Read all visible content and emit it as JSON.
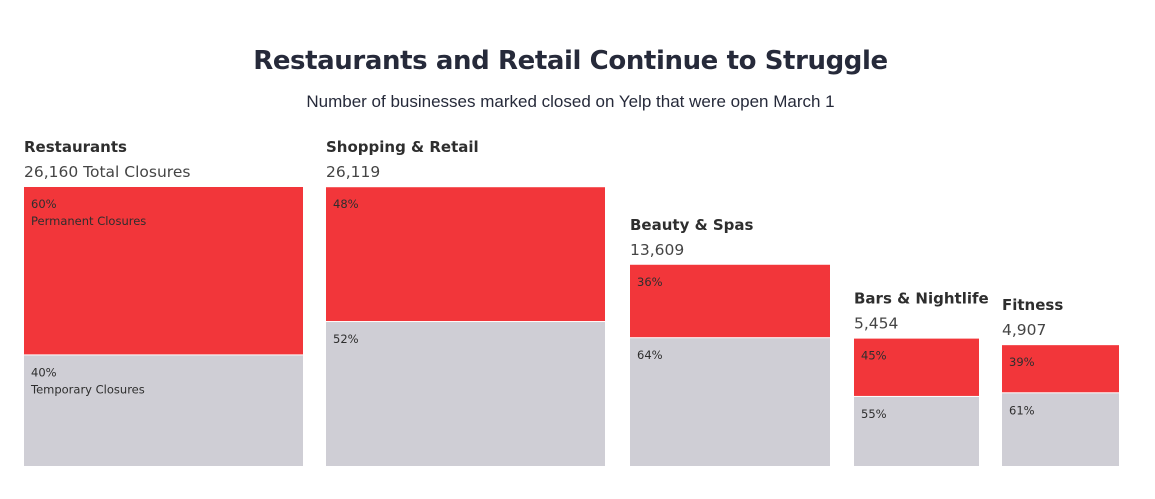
{
  "title": "Restaurants and Retail Continue to Struggle",
  "subtitle": "Number of businesses marked closed on Yelp that were open March 1",
  "colors": {
    "permanent": "#f2363a",
    "temporary": "#cfced5",
    "background": "#ffffff"
  },
  "chart_data": {
    "type": "bar",
    "title": "Restaurants and Retail Continue to Struggle",
    "subtitle": "Number of businesses marked closed on Yelp that were open March 1",
    "series": [
      {
        "name": "Permanent Closures"
      },
      {
        "name": "Temporary Closures"
      }
    ],
    "categories": [
      {
        "name": "Restaurants",
        "total": 26160,
        "total_label": "26,160 Total Closures",
        "permanent_pct": 60,
        "temporary_pct": 40
      },
      {
        "name": "Shopping & Retail",
        "total": 26119,
        "total_label": "26,119",
        "permanent_pct": 48,
        "temporary_pct": 52
      },
      {
        "name": "Beauty & Spas",
        "total": 13609,
        "total_label": "13,609",
        "permanent_pct": 36,
        "temporary_pct": 64
      },
      {
        "name": "Bars & Nightlife",
        "total": 5454,
        "total_label": "5,454",
        "permanent_pct": 45,
        "temporary_pct": 55
      },
      {
        "name": "Fitness",
        "total": 4907,
        "total_label": "4,907",
        "permanent_pct": 39,
        "temporary_pct": 61
      }
    ]
  }
}
